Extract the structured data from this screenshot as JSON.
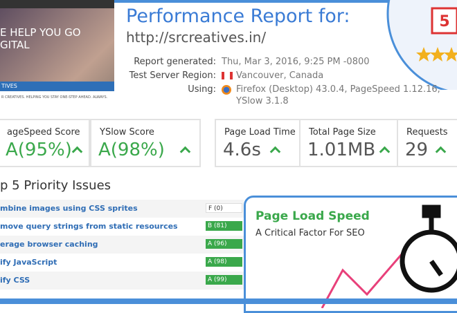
{
  "thumbnail": {
    "headline_1": "E HELP YOU GO",
    "headline_2": "GITAL",
    "brand": "TIVES",
    "tagline": "R CREATIVES. HELPING YOU STAY ONE-STEP AHEAD. ALWAYS."
  },
  "header": {
    "title": "Performance Report for:",
    "url": "http://srcreatives.in/",
    "info": [
      {
        "label": "Report generated:",
        "value": "Thu, Mar 3, 2016, 9:25 PM -0800"
      },
      {
        "label": "Test Server Region:",
        "value": "Vancouver, Canada"
      },
      {
        "label": "Using:",
        "value": "Firefox (Desktop) 43.0.4, PageSpeed 1.12.16,",
        "value_2": "YSlow 3.1.8"
      }
    ]
  },
  "badge": "5",
  "scores": [
    {
      "label": "ageSpeed Score",
      "value": "A(95%)"
    },
    {
      "label": "YSlow Score",
      "value": "A(98%)"
    }
  ],
  "metrics": [
    {
      "label": "Page Load Time",
      "value": "4.6s"
    },
    {
      "label": "Total Page Size",
      "value": "1.01MB"
    },
    {
      "label": "Requests",
      "value": "29"
    }
  ],
  "issues": {
    "title": "p 5 Priority Issues",
    "rows": [
      {
        "name": "mbine images using CSS sprites",
        "grade": "F (0)"
      },
      {
        "name": "move query strings from static resources",
        "grade": "B (81)"
      },
      {
        "name": "erage browser caching",
        "grade": "A (96)"
      },
      {
        "name": "ify JavaScript",
        "grade": "A (98)"
      },
      {
        "name": "ify CSS",
        "grade": "A (99)"
      }
    ]
  },
  "promo": {
    "title": "Page Load Speed",
    "subtitle": "A Critical Factor For SEO"
  }
}
